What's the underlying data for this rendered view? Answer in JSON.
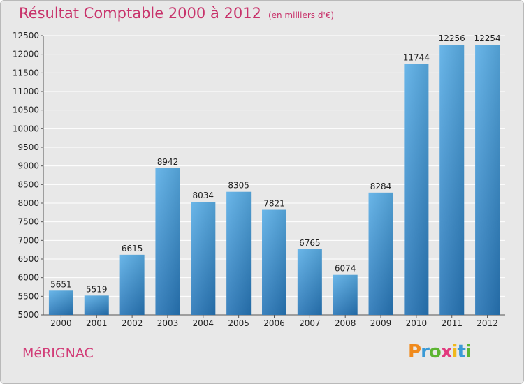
{
  "title": "Résultat Comptable 2000 à 2012",
  "subtitle": "(en milliers d'€)",
  "city": "MéRIGNAC",
  "logo": {
    "letters": [
      "P",
      "r",
      "o",
      "x",
      "i",
      "t",
      "i"
    ],
    "colors": [
      "#f08a1c",
      "#3a9ad6",
      "#5cb531",
      "#e23a7e",
      "#f0b81c",
      "#3a9ad6",
      "#5cb531"
    ]
  },
  "colors": {
    "bar_top": "#5aaee6",
    "bar_bottom": "#2775b6",
    "title": "#c8336b",
    "grid": "#ffffff",
    "background": "#e8e8e8"
  },
  "chart_data": {
    "type": "bar",
    "categories": [
      "2000",
      "2001",
      "2002",
      "2003",
      "2004",
      "2005",
      "2006",
      "2007",
      "2008",
      "2009",
      "2010",
      "2011",
      "2012"
    ],
    "values": [
      5651,
      5519,
      6615,
      8942,
      8034,
      8305,
      7821,
      6765,
      6074,
      8284,
      11744,
      12256,
      12254
    ],
    "data_labels": [
      "5651",
      "5519",
      "6615",
      "8942",
      "8034",
      "8305",
      "7821",
      "6765",
      "6074",
      "8284",
      "11744",
      "12256",
      "12254"
    ],
    "title": "Résultat Comptable 2000 à 2012",
    "xlabel": "",
    "ylabel": "",
    "ylim": [
      5000,
      12500
    ],
    "yticks": [
      5000,
      5500,
      6000,
      6500,
      7000,
      7500,
      8000,
      8500,
      9000,
      9500,
      10000,
      10500,
      11000,
      11500,
      12000,
      12500
    ],
    "grid": true
  }
}
